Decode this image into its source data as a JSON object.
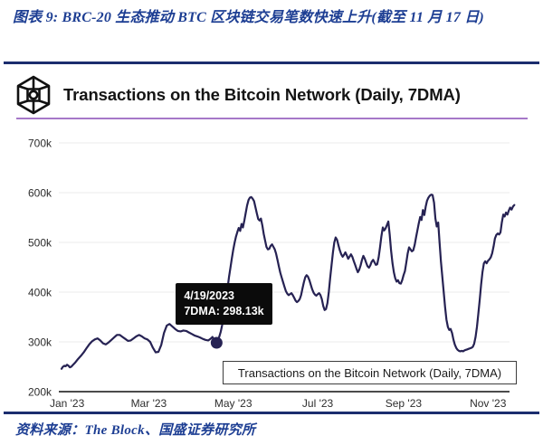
{
  "document": {
    "title": "图表 9: BRC-20 生态推动 BTC 区块链交易笔数快速上升(截至 11 月 17 日)",
    "source_note": "资料来源：The Block、国盛证券研究所"
  },
  "chart_header": {
    "logo_icon": "the-block-cube-logo",
    "title": "Transactions on the Bitcoin Network (Daily, 7DMA)"
  },
  "chart_data": {
    "type": "line",
    "title": "Transactions on the Bitcoin Network (Daily, 7DMA)",
    "legend": "Transactions on the Bitcoin Network (Daily, 7DMA)",
    "legend_position": "bottom-right-inside",
    "grid": true,
    "line_color": "#262253",
    "x_unit": "days since 2023-01-01",
    "y_unit": "transactions per day (thousands, 7DMA)",
    "ylim_k": [
      200,
      700
    ],
    "y_ticks": [
      {
        "label": "200k",
        "value": 200,
        "axis": true
      },
      {
        "label": "300k",
        "value": 300
      },
      {
        "label": "400k",
        "value": 400
      },
      {
        "label": "500k",
        "value": 500
      },
      {
        "label": "600k",
        "value": 600
      },
      {
        "label": "700k",
        "value": 700
      }
    ],
    "x_ticks": [
      {
        "label": "Jan '23",
        "day": 0
      },
      {
        "label": "Mar '23",
        "day": 59
      },
      {
        "label": "May '23",
        "day": 120
      },
      {
        "label": "Jul '23",
        "day": 181
      },
      {
        "label": "Sep '23",
        "day": 243
      },
      {
        "label": "Nov '23",
        "day": 304
      }
    ],
    "tooltip": {
      "date": "4/19/2023",
      "label": "7DMA: 298.13k",
      "day": 108,
      "value": 298.13
    },
    "series": [
      {
        "name": "Transactions on the Bitcoin Network (Daily, 7DMA)",
        "points": [
          [
            -4,
            246
          ],
          [
            -3,
            250
          ],
          [
            -2,
            252
          ],
          [
            -1,
            251
          ],
          [
            0,
            254
          ],
          [
            1,
            252
          ],
          [
            2,
            249
          ],
          [
            3,
            250
          ],
          [
            4,
            253
          ],
          [
            6,
            259
          ],
          [
            8,
            266
          ],
          [
            10,
            272
          ],
          [
            12,
            279
          ],
          [
            14,
            287
          ],
          [
            16,
            295
          ],
          [
            18,
            301
          ],
          [
            20,
            305
          ],
          [
            22,
            307
          ],
          [
            24,
            303
          ],
          [
            26,
            297
          ],
          [
            28,
            295
          ],
          [
            30,
            299
          ],
          [
            32,
            304
          ],
          [
            34,
            309
          ],
          [
            36,
            314
          ],
          [
            38,
            314
          ],
          [
            40,
            310
          ],
          [
            42,
            306
          ],
          [
            44,
            302
          ],
          [
            46,
            303
          ],
          [
            48,
            307
          ],
          [
            50,
            311
          ],
          [
            52,
            314
          ],
          [
            54,
            311
          ],
          [
            56,
            307
          ],
          [
            58,
            305
          ],
          [
            60,
            300
          ],
          [
            62,
            288
          ],
          [
            64,
            279
          ],
          [
            66,
            280
          ],
          [
            68,
            294
          ],
          [
            70,
            318
          ],
          [
            72,
            333
          ],
          [
            74,
            336
          ],
          [
            76,
            331
          ],
          [
            78,
            326
          ],
          [
            80,
            322
          ],
          [
            82,
            321
          ],
          [
            84,
            323
          ],
          [
            86,
            322
          ],
          [
            88,
            319
          ],
          [
            90,
            316
          ],
          [
            92,
            313
          ],
          [
            94,
            311
          ],
          [
            96,
            309
          ],
          [
            98,
            306
          ],
          [
            100,
            304
          ],
          [
            102,
            303
          ],
          [
            104,
            307
          ],
          [
            105,
            310
          ],
          [
            106,
            304
          ],
          [
            107,
            300
          ],
          [
            108,
            298.13
          ],
          [
            109,
            303
          ],
          [
            110,
            311
          ],
          [
            111,
            321
          ],
          [
            112,
            334
          ],
          [
            113,
            351
          ],
          [
            114,
            369
          ],
          [
            115,
            389
          ],
          [
            116,
            410
          ],
          [
            117,
            431
          ],
          [
            118,
            450
          ],
          [
            119,
            468
          ],
          [
            120,
            485
          ],
          [
            121,
            500
          ],
          [
            122,
            512
          ],
          [
            123,
            521
          ],
          [
            124,
            529
          ],
          [
            125,
            523
          ],
          [
            126,
            537
          ],
          [
            127,
            530
          ],
          [
            128,
            544
          ],
          [
            129,
            559
          ],
          [
            130,
            574
          ],
          [
            131,
            585
          ],
          [
            132,
            590
          ],
          [
            133,
            591
          ],
          [
            134,
            588
          ],
          [
            135,
            583
          ],
          [
            136,
            571
          ],
          [
            137,
            559
          ],
          [
            138,
            547
          ],
          [
            139,
            544
          ],
          [
            140,
            548
          ],
          [
            141,
            534
          ],
          [
            142,
            517
          ],
          [
            143,
            504
          ],
          [
            144,
            491
          ],
          [
            145,
            486
          ],
          [
            146,
            487
          ],
          [
            147,
            493
          ],
          [
            148,
            496
          ],
          [
            149,
            491
          ],
          [
            150,
            486
          ],
          [
            151,
            477
          ],
          [
            152,
            464
          ],
          [
            153,
            451
          ],
          [
            154,
            439
          ],
          [
            155,
            429
          ],
          [
            156,
            420
          ],
          [
            157,
            411
          ],
          [
            158,
            402
          ],
          [
            159,
            397
          ],
          [
            160,
            394
          ],
          [
            161,
            396
          ],
          [
            162,
            398
          ],
          [
            163,
            394
          ],
          [
            164,
            389
          ],
          [
            165,
            383
          ],
          [
            166,
            380
          ],
          [
            167,
            382
          ],
          [
            168,
            386
          ],
          [
            169,
            394
          ],
          [
            170,
            407
          ],
          [
            171,
            420
          ],
          [
            172,
            430
          ],
          [
            173,
            434
          ],
          [
            174,
            431
          ],
          [
            175,
            424
          ],
          [
            176,
            415
          ],
          [
            177,
            406
          ],
          [
            178,
            399
          ],
          [
            179,
            395
          ],
          [
            180,
            393
          ],
          [
            181,
            396
          ],
          [
            182,
            398
          ],
          [
            183,
            394
          ],
          [
            184,
            386
          ],
          [
            185,
            372
          ],
          [
            186,
            364
          ],
          [
            187,
            366
          ],
          [
            188,
            378
          ],
          [
            189,
            400
          ],
          [
            190,
            428
          ],
          [
            191,
            455
          ],
          [
            192,
            480
          ],
          [
            193,
            500
          ],
          [
            194,
            510
          ],
          [
            195,
            505
          ],
          [
            196,
            494
          ],
          [
            197,
            484
          ],
          [
            198,
            476
          ],
          [
            199,
            471
          ],
          [
            200,
            475
          ],
          [
            201,
            480
          ],
          [
            202,
            474
          ],
          [
            203,
            467
          ],
          [
            204,
            471
          ],
          [
            205,
            476
          ],
          [
            206,
            471
          ],
          [
            207,
            463
          ],
          [
            208,
            455
          ],
          [
            209,
            447
          ],
          [
            210,
            440
          ],
          [
            211,
            445
          ],
          [
            212,
            454
          ],
          [
            213,
            465
          ],
          [
            214,
            473
          ],
          [
            215,
            467
          ],
          [
            216,
            459
          ],
          [
            217,
            452
          ],
          [
            218,
            449
          ],
          [
            219,
            454
          ],
          [
            220,
            461
          ],
          [
            221,
            465
          ],
          [
            222,
            460
          ],
          [
            223,
            455
          ],
          [
            224,
            456
          ],
          [
            225,
            470
          ],
          [
            226,
            490
          ],
          [
            227,
            512
          ],
          [
            228,
            530
          ],
          [
            229,
            524
          ],
          [
            230,
            528
          ],
          [
            231,
            535
          ],
          [
            232,
            542
          ],
          [
            233,
            516
          ],
          [
            234,
            484
          ],
          [
            235,
            458
          ],
          [
            236,
            440
          ],
          [
            237,
            428
          ],
          [
            238,
            421
          ],
          [
            239,
            424
          ],
          [
            240,
            418
          ],
          [
            241,
            417
          ],
          [
            242,
            424
          ],
          [
            243,
            434
          ],
          [
            244,
            442
          ],
          [
            245,
            460
          ],
          [
            246,
            478
          ],
          [
            247,
            490
          ],
          [
            248,
            486
          ],
          [
            249,
            482
          ],
          [
            250,
            484
          ],
          [
            251,
            495
          ],
          [
            252,
            510
          ],
          [
            253,
            524
          ],
          [
            254,
            538
          ],
          [
            255,
            551
          ],
          [
            256,
            545
          ],
          [
            257,
            565
          ],
          [
            258,
            555
          ],
          [
            259,
            572
          ],
          [
            260,
            584
          ],
          [
            261,
            590
          ],
          [
            262,
            594
          ],
          [
            263,
            596
          ],
          [
            264,
            595
          ],
          [
            265,
            580
          ],
          [
            266,
            548
          ],
          [
            267,
            532
          ],
          [
            268,
            540
          ],
          [
            269,
            500
          ],
          [
            270,
            462
          ],
          [
            271,
            430
          ],
          [
            272,
            400
          ],
          [
            273,
            370
          ],
          [
            274,
            345
          ],
          [
            275,
            330
          ],
          [
            276,
            324
          ],
          [
            277,
            326
          ],
          [
            278,
            318
          ],
          [
            279,
            305
          ],
          [
            280,
            295
          ],
          [
            281,
            288
          ],
          [
            282,
            284
          ],
          [
            283,
            282
          ],
          [
            284,
            281
          ],
          [
            285,
            282
          ],
          [
            286,
            281
          ],
          [
            287,
            283
          ],
          [
            288,
            284
          ],
          [
            289,
            285
          ],
          [
            290,
            286
          ],
          [
            291,
            287
          ],
          [
            292,
            288
          ],
          [
            293,
            290
          ],
          [
            294,
            296
          ],
          [
            295,
            310
          ],
          [
            296,
            330
          ],
          [
            297,
            356
          ],
          [
            298,
            385
          ],
          [
            299,
            415
          ],
          [
            300,
            440
          ],
          [
            301,
            458
          ],
          [
            302,
            462
          ],
          [
            303,
            458
          ],
          [
            304,
            463
          ],
          [
            305,
            466
          ],
          [
            306,
            470
          ],
          [
            307,
            478
          ],
          [
            308,
            492
          ],
          [
            309,
            508
          ],
          [
            310,
            515
          ],
          [
            311,
            518
          ],
          [
            312,
            516
          ],
          [
            313,
            520
          ],
          [
            314,
            540
          ],
          [
            315,
            556
          ],
          [
            316,
            552
          ],
          [
            317,
            560
          ],
          [
            318,
            556
          ],
          [
            319,
            564
          ],
          [
            320,
            570
          ],
          [
            321,
            566
          ],
          [
            322,
            572
          ],
          [
            323,
            575
          ]
        ]
      }
    ]
  }
}
